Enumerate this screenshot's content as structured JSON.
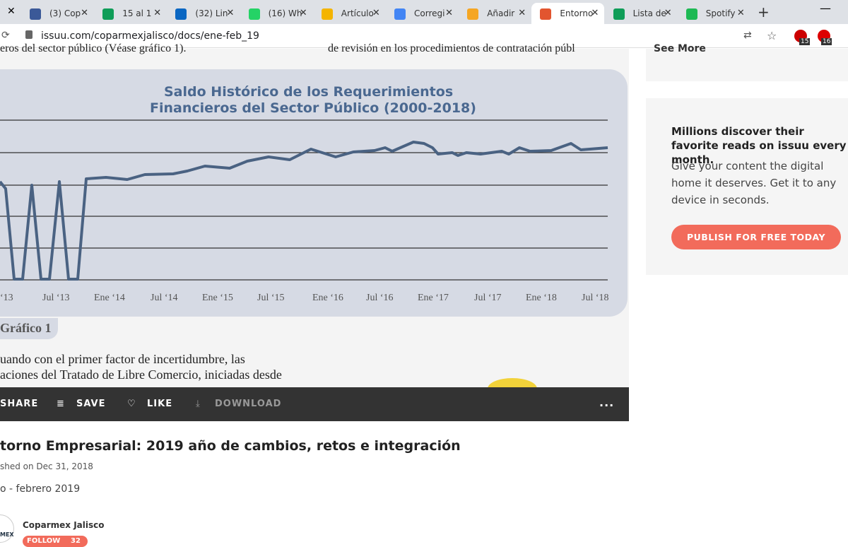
{
  "browser": {
    "tabs": [
      "(3) Cop",
      "15 al 1",
      "(32) Lin",
      "(16) Wh",
      "Artículo",
      "Corregi",
      "Añadir",
      "Entorno",
      "Lista de",
      "Spotify"
    ],
    "url": "issuu.com/coparmexjalisco/docs/ene-feb_19",
    "badges": [
      "15",
      "16"
    ]
  },
  "document": {
    "top_left": "eros del sector público (Véase gráfico 1).",
    "top_right": "de revisión en los procedimientos de contratación públ",
    "chart_title": [
      "Saldo Histórico de los Requerimientos",
      "Financieros del Sector Público (2000-2018)"
    ],
    "x_labels": [
      "‘13",
      "Jul ‘13",
      "Ene ‘14",
      "Jul ‘14",
      "Ene ‘15",
      "Jul ‘15",
      "Ene ‘16",
      "Jul ‘16",
      "Ene ‘17",
      "Jul ‘17",
      "Ene ‘18",
      "Jul ‘18"
    ],
    "caption": "Gráfico 1",
    "body": [
      "uando con el primer factor de incertidumbre, las",
      "aciones del Tratado de Libre Comercio, iniciadas desde"
    ]
  },
  "toolbar": {
    "share": "SHARE",
    "save": "SAVE",
    "like": "LIKE",
    "download": "DOWNLOAD",
    "more": "..."
  },
  "publication": {
    "title": "torno Empresarial: 2019 año de cambios, retos e integración",
    "published": "shed on Dec 31, 2018",
    "issue": "o - febrero 2019",
    "publisher": "Coparmex Jalisco",
    "avatar": "MEX",
    "follow": "FOLLOW",
    "followers": "32"
  },
  "sidebar": {
    "see_more": "See More",
    "headline": "Millions discover their favorite reads on issuu every month.",
    "text": "Give your content the digital home it deserves. Get it to any device in seconds.",
    "button": "PUBLISH FOR FREE TODAY"
  }
}
